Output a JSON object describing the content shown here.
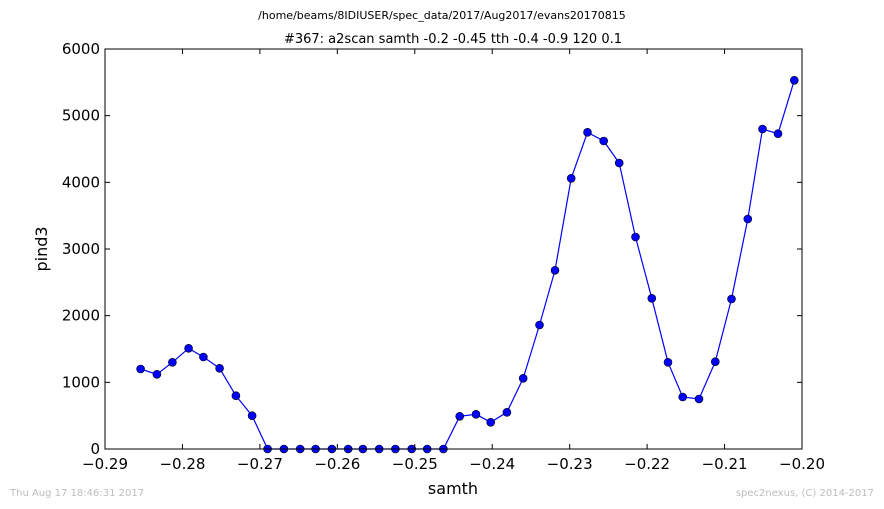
{
  "chart_data": {
    "type": "line",
    "suptitle": "/home/beams/8IDIUSER/spec_data/2017/Aug2017/evans20170815",
    "title": "#367: a2scan  samth -0.2 -0.45  tth -0.4 -0.9  120 0.1",
    "xlabel": "samth",
    "ylabel": "pind3",
    "xlim": [
      -0.29,
      -0.2
    ],
    "ylim": [
      0,
      6000
    ],
    "xticks": [
      -0.29,
      -0.28,
      -0.27,
      -0.26,
      -0.25,
      -0.24,
      -0.23,
      -0.22,
      -0.21,
      -0.2
    ],
    "xtick_labels": [
      "−0.29",
      "−0.28",
      "−0.27",
      "−0.26",
      "−0.25",
      "−0.24",
      "−0.23",
      "−0.22",
      "−0.21",
      "−0.20"
    ],
    "yticks": [
      0,
      1000,
      2000,
      3000,
      4000,
      5000,
      6000
    ],
    "ytick_labels": [
      "0",
      "1000",
      "2000",
      "3000",
      "4000",
      "5000",
      "6000"
    ],
    "grid": false,
    "line_color": "#0000ff",
    "marker_color": "#0000ff",
    "series": [
      {
        "x": [
          -0.2854,
          -0.2833,
          -0.2813,
          -0.2792,
          -0.2773,
          -0.2752,
          -0.2731,
          -0.271,
          -0.269,
          -0.2669,
          -0.2648,
          -0.2628,
          -0.2607,
          -0.2586,
          -0.2567,
          -0.2546,
          -0.2525,
          -0.2504,
          -0.2484,
          -0.2463,
          -0.2442,
          -0.2421,
          -0.2402,
          -0.2381,
          -0.236,
          -0.2339,
          -0.2319,
          -0.2298,
          -0.2277,
          -0.2256,
          -0.2236,
          -0.2215,
          -0.2194,
          -0.2173,
          -0.2154,
          -0.2133,
          -0.2112,
          -0.2091,
          -0.207,
          -0.2051,
          -0.2031,
          -0.201
        ],
        "y": [
          1200,
          1120,
          1300,
          1510,
          1380,
          1210,
          800,
          500,
          0,
          0,
          0,
          0,
          0,
          0,
          0,
          0,
          0,
          0,
          0,
          0,
          490,
          520,
          400,
          550,
          1060,
          1860,
          2680,
          4060,
          4750,
          4620,
          4290,
          3180,
          2260,
          1300,
          780,
          750,
          1310,
          2250,
          3450,
          4800,
          4730,
          5530
        ]
      }
    ]
  },
  "footer": {
    "timestamp": "Thu Aug 17 18:46:31 2017",
    "credit": "spec2nexus, (C) 2014-2017"
  }
}
